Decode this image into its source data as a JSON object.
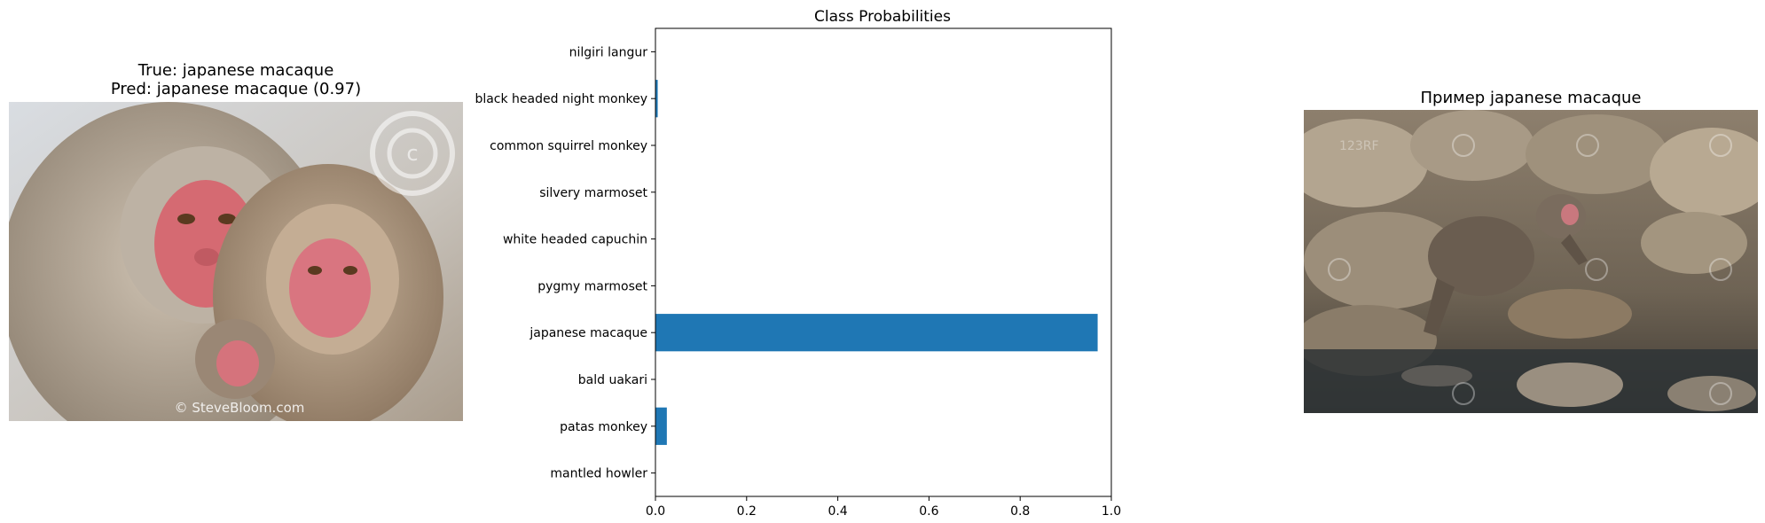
{
  "left_panel": {
    "title_line1": "True: japanese macaque",
    "title_line2": "Pred: japanese macaque (0.97)",
    "watermark": "© SteveBloom.com",
    "watermark_seal": "STEVE BLOOM IMAGES"
  },
  "right_panel": {
    "title": "Пример japanese macaque",
    "watermark": "123RF"
  },
  "chart_data": {
    "type": "bar",
    "orientation": "horizontal",
    "title": "Class Probabilities",
    "xlabel": "",
    "ylabel": "",
    "xlim": [
      0,
      1.0
    ],
    "xticks": [
      "0.0",
      "0.2",
      "0.4",
      "0.6",
      "0.8",
      "1.0"
    ],
    "categories": [
      "mantled howler",
      "patas monkey",
      "bald uakari",
      "japanese macaque",
      "pygmy marmoset",
      "white headed capuchin",
      "silvery marmoset",
      "common squirrel monkey",
      "black headed night monkey",
      "nilgiri langur"
    ],
    "values": [
      0.0,
      0.025,
      0.0,
      0.97,
      0.0,
      0.0,
      0.0,
      0.0,
      0.005,
      0.0
    ],
    "bar_color": "#1f77b4",
    "grid": false
  }
}
